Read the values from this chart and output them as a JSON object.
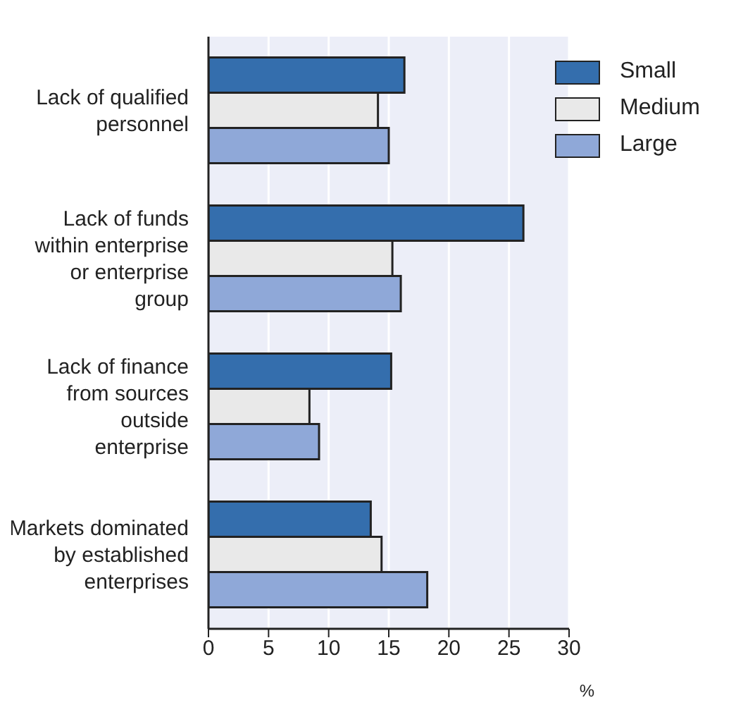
{
  "chart_data": {
    "type": "bar",
    "orientation": "horizontal",
    "xlabel": "%",
    "categories": [
      "Lack of qualified personnel",
      "Lack of funds within enterprise or enterprise group",
      "Lack of finance from sources outside enterprise",
      "Markets dominated by established enterprises"
    ],
    "series": [
      {
        "name": "Small",
        "color": "#346ead",
        "values": [
          16.3,
          26.2,
          15.2,
          13.5
        ]
      },
      {
        "name": "Medium",
        "color": "#e9e9e9",
        "values": [
          14.1,
          15.3,
          8.4,
          14.4
        ]
      },
      {
        "name": "Large",
        "color": "#8fa8d8",
        "values": [
          15.0,
          16.0,
          9.2,
          18.2
        ]
      }
    ],
    "xlim": [
      0,
      30
    ],
    "xticks": [
      0,
      5,
      10,
      15,
      20,
      25,
      30
    ],
    "grid": "x",
    "legend": "top right"
  }
}
